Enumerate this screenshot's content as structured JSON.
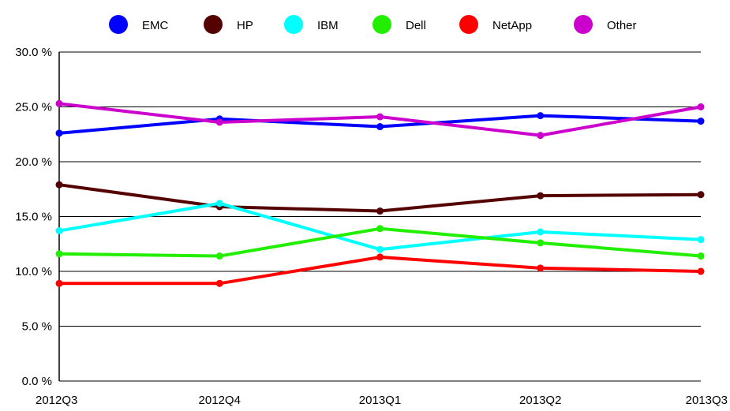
{
  "chart_data": {
    "type": "line",
    "x": [
      "2012Q3",
      "2012Q4",
      "2013Q1",
      "2013Q2",
      "2013Q3"
    ],
    "ylim": [
      0,
      30
    ],
    "yticks": [
      "0.0 %",
      "5.0 %",
      "10.0 %",
      "15.0 %",
      "20.0 %",
      "25.0 %",
      "30.0 %"
    ],
    "grid": "horizontal",
    "legend_position": "top",
    "series": [
      {
        "name": "EMC",
        "color": "#0000ff",
        "values": [
          22.6,
          23.9,
          23.2,
          24.2,
          23.7
        ]
      },
      {
        "name": "HP",
        "color": "#550000",
        "values": [
          17.9,
          15.9,
          15.5,
          16.9,
          17.0
        ]
      },
      {
        "name": "IBM",
        "color": "#00ffff",
        "values": [
          13.7,
          16.2,
          12.0,
          13.6,
          12.9
        ]
      },
      {
        "name": "Dell",
        "color": "#22ee00",
        "values": [
          11.6,
          11.4,
          13.9,
          12.6,
          11.4
        ]
      },
      {
        "name": "NetApp",
        "color": "#ff0000",
        "values": [
          8.9,
          8.9,
          11.3,
          10.3,
          10.0
        ]
      },
      {
        "name": "Other",
        "color": "#cc00cc",
        "values": [
          25.3,
          23.6,
          24.1,
          22.4,
          25.0
        ]
      }
    ]
  }
}
